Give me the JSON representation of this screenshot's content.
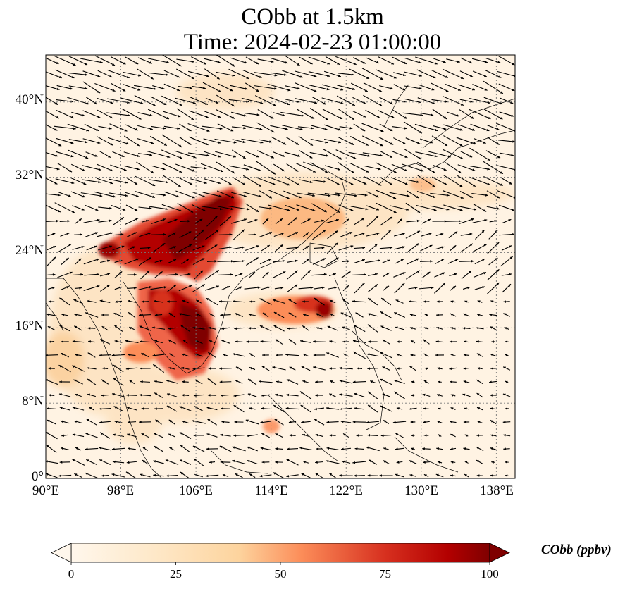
{
  "title_line1": "CObb at 1.5km",
  "title_line2": "Time: 2024-02-23 01:00:00",
  "chart_data": {
    "type": "heatmap",
    "variable": "CObb",
    "level": "1.5km",
    "time": "2024-02-23 01:00:00",
    "colormap": "OrRd",
    "vmin": 0,
    "vmax": 100,
    "extend": "both",
    "lon_range": [
      90,
      140
    ],
    "lat_range": [
      0,
      45
    ],
    "lon_ticks": [
      "90°E",
      "98°E",
      "106°E",
      "114°E",
      "122°E",
      "130°E",
      "138°E"
    ],
    "lat_ticks": [
      "0°",
      "8°N",
      "16°N",
      "24°N",
      "32°N",
      "40°N"
    ],
    "colorbar_ticks": [
      "0",
      "25",
      "50",
      "75",
      "100"
    ],
    "colorbar_label": "CObb (ppbv)",
    "grid": true,
    "overlay": "wind vectors (quiver) and coastlines",
    "colors": {
      "low": "#fff7ec",
      "light": "#fdd49e",
      "mid": "#fc8d59",
      "high": "#d7301f",
      "max": "#7f0000"
    }
  }
}
